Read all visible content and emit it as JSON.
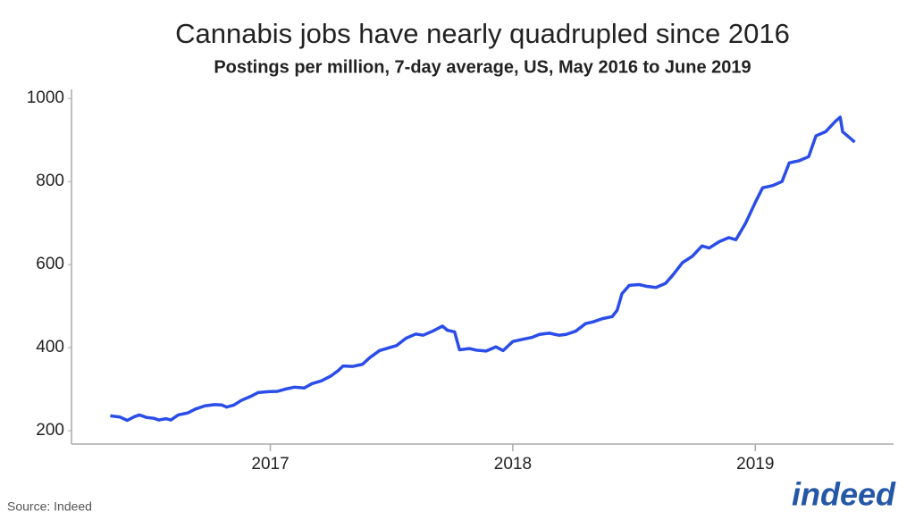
{
  "chart_data": {
    "type": "line",
    "title": "Cannabis jobs have nearly quadrupled since 2016",
    "subtitle": "Postings per million, 7-day average, US, May 2016 to June 2019",
    "x": [
      2016.34,
      2016.38,
      2016.41,
      2016.44,
      2016.46,
      2016.49,
      2016.52,
      2016.54,
      2016.57,
      2016.59,
      2016.62,
      2016.66,
      2016.69,
      2016.73,
      2016.77,
      2016.8,
      2016.82,
      2016.85,
      2016.88,
      2016.92,
      2016.95,
      2016.99,
      2017.03,
      2017.06,
      2017.1,
      2017.14,
      2017.17,
      2017.21,
      2017.25,
      2017.28,
      2017.3,
      2017.34,
      2017.38,
      2017.41,
      2017.45,
      2017.49,
      2017.52,
      2017.56,
      2017.6,
      2017.63,
      2017.67,
      2017.71,
      2017.73,
      2017.76,
      2017.78,
      2017.82,
      2017.85,
      2017.89,
      2017.93,
      2017.96,
      2018.0,
      2018.04,
      2018.08,
      2018.11,
      2018.15,
      2018.19,
      2018.22,
      2018.26,
      2018.3,
      2018.33,
      2018.37,
      2018.41,
      2018.43,
      2018.45,
      2018.48,
      2018.52,
      2018.55,
      2018.59,
      2018.63,
      2018.66,
      2018.7,
      2018.74,
      2018.78,
      2018.81,
      2018.85,
      2018.89,
      2018.92,
      2018.96,
      2019.0,
      2019.03,
      2019.07,
      2019.11,
      2019.14,
      2019.18,
      2019.22,
      2019.25,
      2019.29,
      2019.33,
      2019.35,
      2019.36,
      2019.38,
      2019.41
    ],
    "series": [
      {
        "name": "Postings per million",
        "color": "#2a4de8",
        "values": [
          236,
          233,
          225,
          234,
          238,
          232,
          230,
          226,
          229,
          226,
          238,
          243,
          252,
          260,
          263,
          262,
          257,
          262,
          273,
          283,
          292,
          294,
          295,
          300,
          305,
          303,
          313,
          320,
          332,
          345,
          356,
          355,
          360,
          376,
          393,
          400,
          405,
          423,
          433,
          430,
          440,
          452,
          442,
          438,
          395,
          398,
          394,
          392,
          402,
          393,
          415,
          420,
          425,
          432,
          435,
          430,
          432,
          440,
          458,
          462,
          470,
          475,
          490,
          530,
          550,
          552,
          548,
          545,
          555,
          575,
          605,
          620,
          645,
          640,
          655,
          665,
          660,
          700,
          750,
          785,
          790,
          800,
          845,
          850,
          860,
          910,
          920,
          945,
          955,
          920,
          910,
          895
        ]
      }
    ],
    "xlim": [
      2016.18,
      2019.57
    ],
    "xticks": [
      2017,
      2018,
      2019
    ],
    "ylim": [
      168,
      1022
    ],
    "yticks": [
      200,
      400,
      600,
      800,
      1000
    ],
    "grid": false
  },
  "source": "Source: Indeed",
  "logo": "indeed"
}
